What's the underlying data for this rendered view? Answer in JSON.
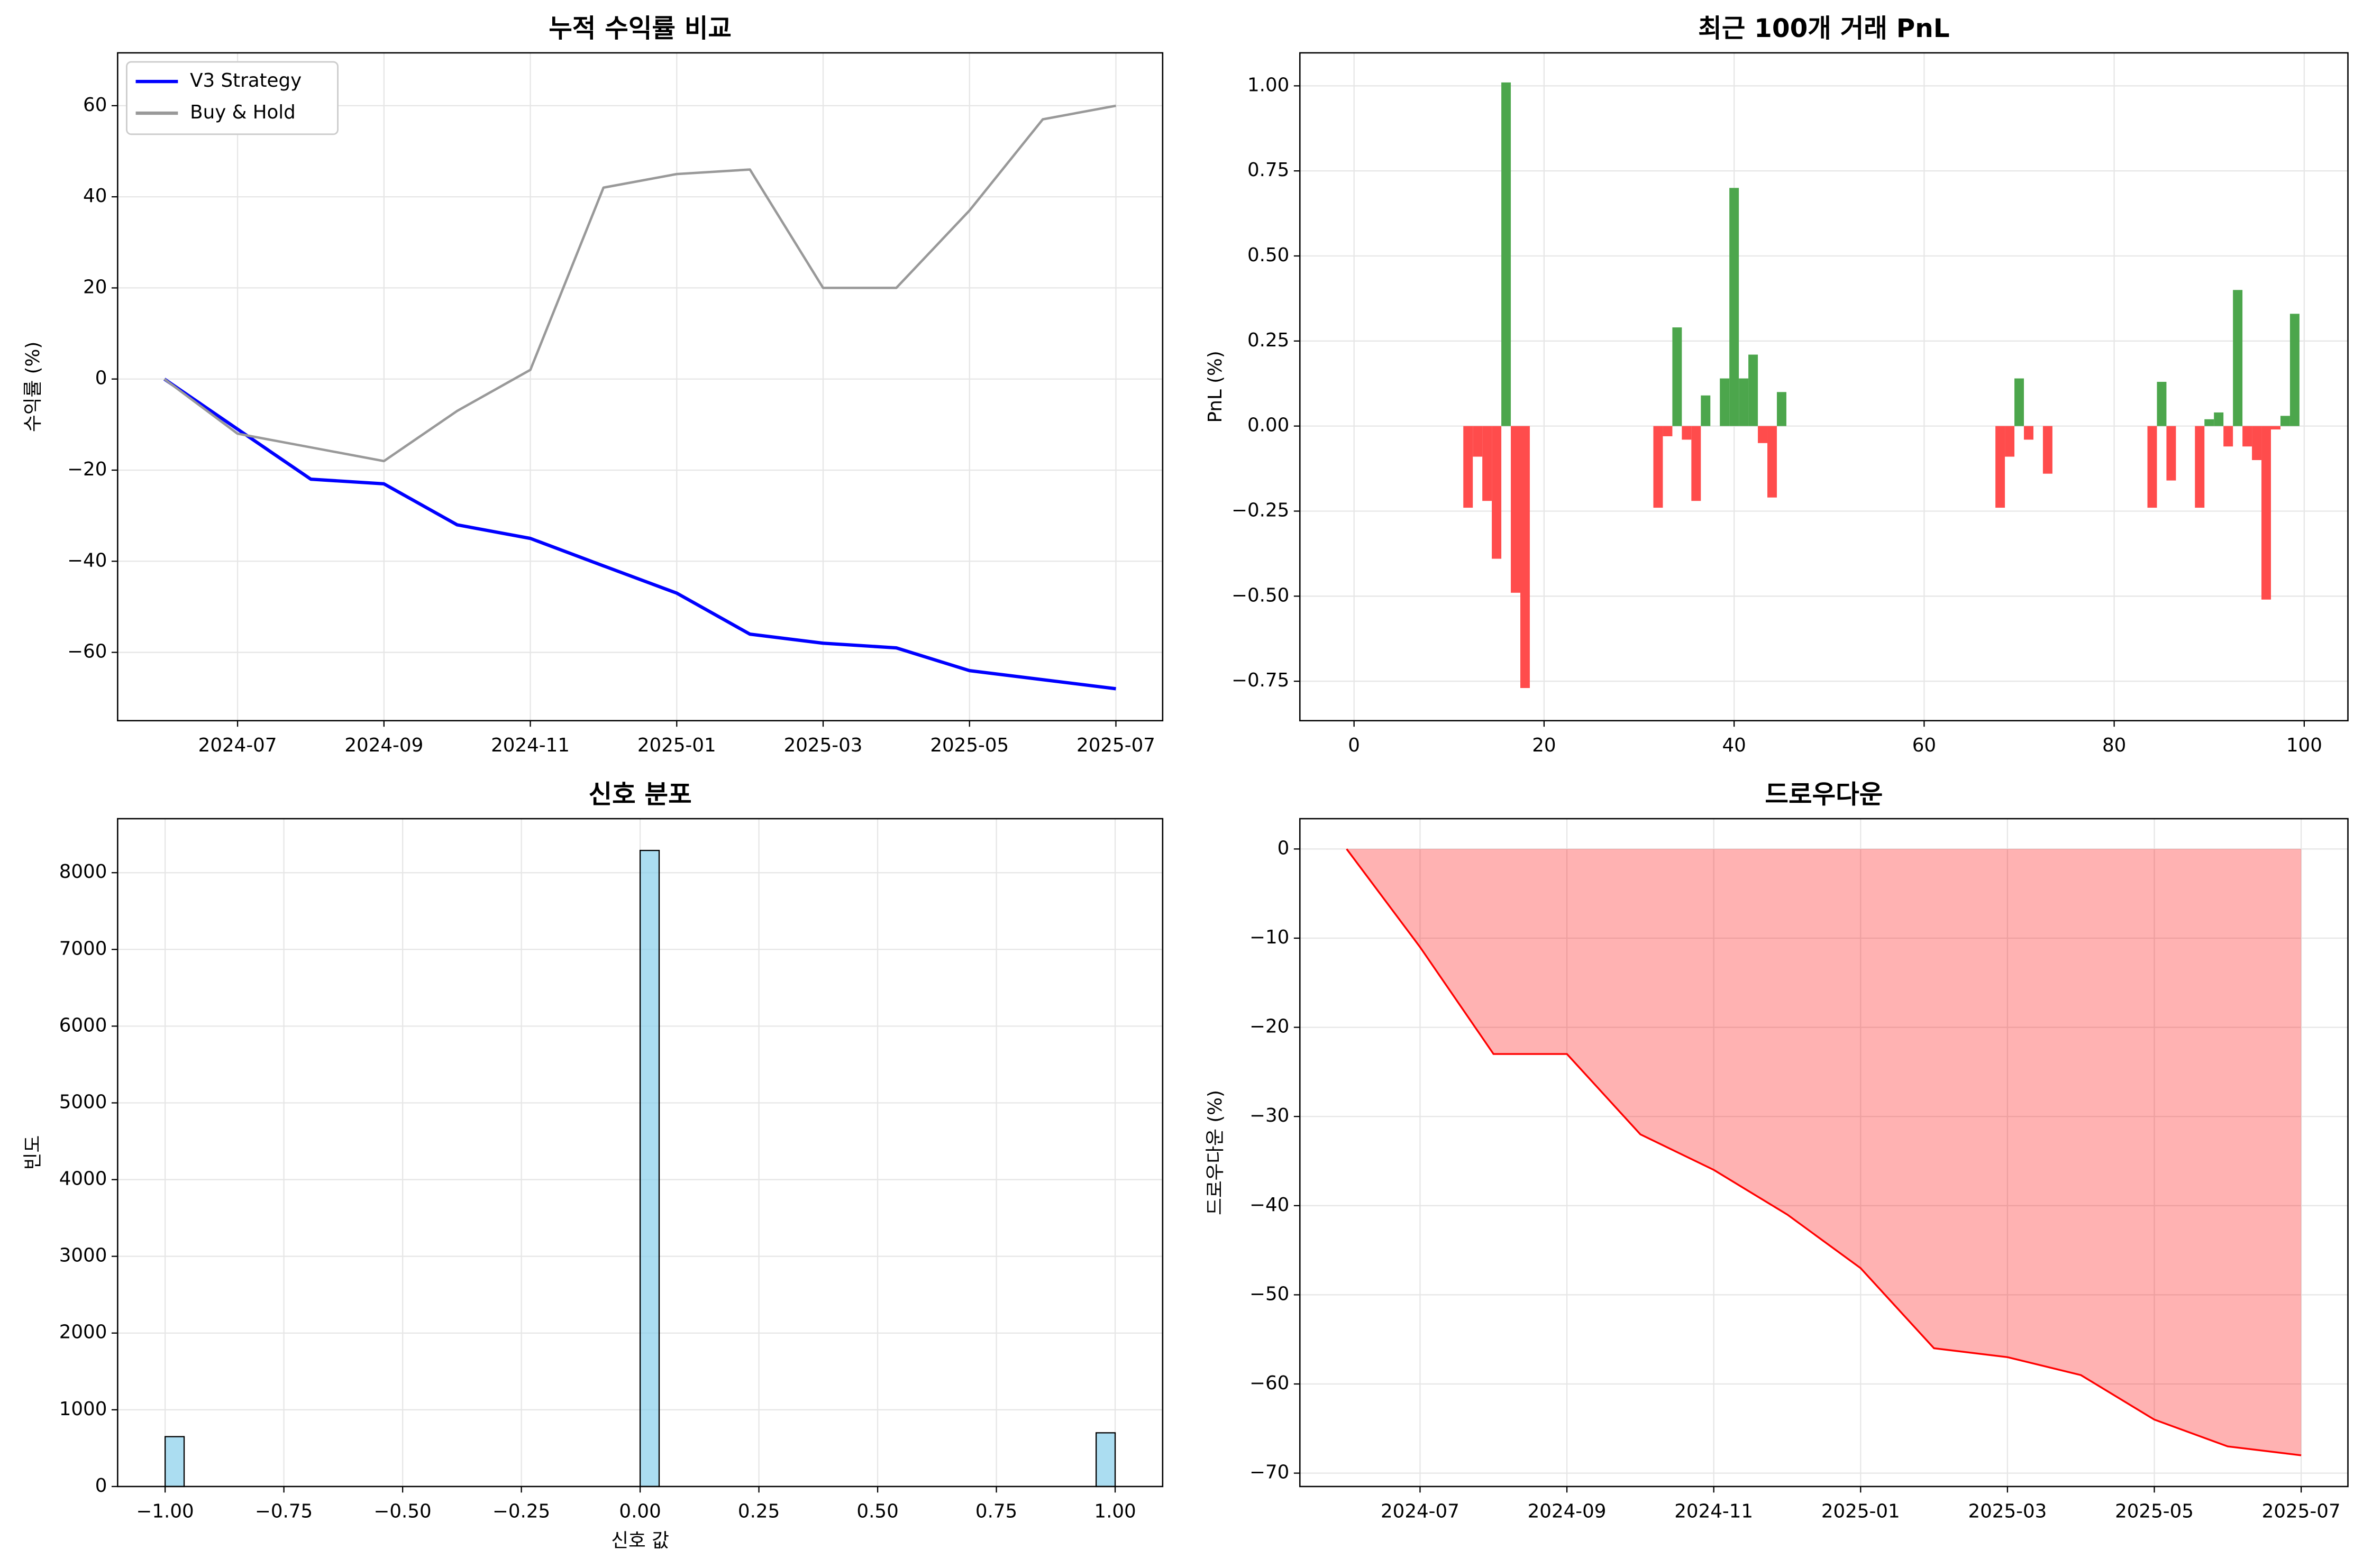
{
  "chart_data": [
    {
      "type": "line",
      "title": "누적 수익률 비교",
      "ylabel": "수익률 (%)",
      "x": [
        "2024-06",
        "2024-07",
        "2024-08",
        "2024-09",
        "2024-10",
        "2024-11",
        "2024-12",
        "2025-01",
        "2025-02",
        "2025-03",
        "2025-04",
        "2025-05",
        "2025-06",
        "2025-07"
      ],
      "xticks": [
        "2024-07",
        "2024-09",
        "2024-11",
        "2025-01",
        "2025-03",
        "2025-05",
        "2025-07"
      ],
      "series": [
        {
          "name": "V3 Strategy",
          "color": "#0000ff",
          "values": [
            0,
            -11,
            -22,
            -23,
            -32,
            -35,
            -41,
            -47,
            -56,
            -58,
            -59,
            -64,
            -66,
            -68
          ]
        },
        {
          "name": "Buy & Hold",
          "color": "#999999",
          "values": [
            0,
            -12,
            -15,
            -18,
            -7,
            2,
            42,
            45,
            46,
            20,
            20,
            37,
            57,
            60
          ]
        }
      ],
      "ylim": [
        -75,
        71.6
      ],
      "yticks": [
        {
          "value": -60,
          "label": "−60"
        },
        {
          "value": -40,
          "label": "−40"
        },
        {
          "value": -20,
          "label": "−20"
        },
        0,
        20,
        40,
        60
      ],
      "grid": true,
      "legend": "upper-left"
    },
    {
      "type": "bar",
      "title": "최근 100개 거래 PnL",
      "ylabel": "PnL (%)",
      "x": [
        0,
        1,
        2,
        3,
        4,
        5,
        6,
        7,
        8,
        9,
        10,
        11,
        12,
        13,
        14,
        15,
        16,
        17,
        18,
        19,
        20,
        21,
        22,
        23,
        24,
        25,
        26,
        27,
        28,
        29,
        30,
        31,
        32,
        33,
        34,
        35,
        36,
        37,
        38,
        39,
        40,
        41,
        42,
        43,
        44,
        45,
        46,
        47,
        48,
        49,
        50,
        51,
        52,
        53,
        54,
        55,
        56,
        57,
        58,
        59,
        60,
        61,
        62,
        63,
        64,
        65,
        66,
        67,
        68,
        69,
        70,
        71,
        72,
        73,
        74,
        75,
        76,
        77,
        78,
        79,
        80,
        81,
        82,
        83,
        84,
        85,
        86,
        87,
        88,
        89,
        90,
        91,
        92,
        93,
        94,
        95,
        96,
        97,
        98,
        99
      ],
      "values": [
        0,
        0,
        0,
        0,
        0,
        0,
        0,
        0,
        0,
        0,
        0,
        0,
        -0.24,
        -0.09,
        -0.22,
        -0.39,
        1.01,
        -0.49,
        -0.77,
        0,
        0,
        0,
        0,
        0,
        0,
        0,
        0,
        0,
        0,
        0,
        0,
        0,
        -0.24,
        -0.03,
        0.29,
        -0.04,
        -0.22,
        0.09,
        0,
        0.14,
        0.7,
        0.14,
        0.21,
        -0.05,
        -0.21,
        0.1,
        0,
        0,
        0,
        0,
        0,
        0,
        0,
        0,
        0,
        0,
        0,
        0,
        0,
        0,
        0,
        0,
        0,
        0,
        0,
        0,
        0,
        0,
        -0.24,
        -0.09,
        0.14,
        -0.04,
        0,
        -0.14,
        0,
        0,
        0,
        0,
        0,
        0,
        0,
        0,
        0,
        0,
        -0.24,
        0.13,
        -0.16,
        0,
        0,
        -0.24,
        0.02,
        0.04,
        -0.06,
        0.4,
        -0.06,
        -0.1,
        -0.51,
        -0.01,
        0.03,
        0.33
      ],
      "color_positive": "#4ca64c",
      "color_negative": "#ff4c4c",
      "xlim": [
        -5.7,
        104.6
      ],
      "xticks": [
        0,
        20,
        40,
        60,
        80,
        100
      ],
      "ylim": [
        -0.866,
        1.097
      ],
      "yticks": [
        {
          "value": -0.75,
          "label": "−0.75"
        },
        {
          "value": -0.5,
          "label": "−0.50"
        },
        {
          "value": -0.25,
          "label": "−0.25"
        },
        {
          "value": 0,
          "label": "0.00"
        },
        0.25,
        {
          "value": 0.5,
          "label": "0.50"
        },
        0.75,
        {
          "value": 1,
          "label": "1.00"
        }
      ],
      "grid": true
    },
    {
      "type": "histogram",
      "title": "신호 분포",
      "xlabel": "신호 값",
      "ylabel": "빈도",
      "bins": [
        -1,
        -0.96,
        -0.92,
        -0.88,
        -0.84,
        -0.8,
        -0.76,
        -0.72,
        -0.68,
        -0.64,
        -0.6,
        -0.56,
        -0.52,
        -0.48,
        -0.44,
        -0.4,
        -0.36,
        -0.32,
        -0.28,
        -0.24,
        -0.2,
        -0.16,
        -0.12,
        -0.08,
        -0.04,
        0,
        0.04,
        0.08,
        0.12,
        0.16,
        0.2,
        0.24,
        0.28,
        0.32,
        0.36,
        0.4,
        0.44,
        0.48,
        0.52,
        0.56,
        0.6,
        0.64,
        0.68,
        0.72,
        0.76,
        0.8,
        0.84,
        0.88,
        0.92,
        0.96,
        1
      ],
      "values": [
        650,
        0,
        0,
        0,
        0,
        0,
        0,
        0,
        0,
        0,
        0,
        0,
        0,
        0,
        0,
        0,
        0,
        0,
        0,
        0,
        0,
        0,
        0,
        0,
        0,
        8290,
        0,
        0,
        0,
        0,
        0,
        0,
        0,
        0,
        0,
        0,
        0,
        0,
        0,
        0,
        0,
        0,
        0,
        0,
        0,
        0,
        0,
        0,
        0,
        700
      ],
      "color": "#87ceeb",
      "edgecolor": "#000000",
      "xlim": [
        -1.1,
        1.1
      ],
      "xticks": [
        {
          "value": -1,
          "label": "−1.00"
        },
        {
          "value": -0.75,
          "label": "−0.75"
        },
        {
          "value": -0.5,
          "label": "−0.50"
        },
        {
          "value": -0.25,
          "label": "−0.25"
        },
        {
          "value": 0,
          "label": "0.00"
        },
        0.25,
        {
          "value": 0.5,
          "label": "0.50"
        },
        0.75,
        {
          "value": 1,
          "label": "1.00"
        }
      ],
      "ylim": [
        0,
        8704
      ],
      "yticks": [
        0,
        1000,
        2000,
        3000,
        4000,
        5000,
        6000,
        7000,
        8000
      ],
      "grid": true
    },
    {
      "type": "area",
      "title": "드로우다운",
      "ylabel": "드로우다운 (%)",
      "x": [
        "2024-06",
        "2024-07",
        "2024-08",
        "2024-09",
        "2024-10",
        "2024-11",
        "2024-12",
        "2025-01",
        "2025-02",
        "2025-03",
        "2025-04",
        "2025-05",
        "2025-06",
        "2025-07"
      ],
      "xticks": [
        "2024-07",
        "2024-09",
        "2024-11",
        "2025-01",
        "2025-03",
        "2025-05",
        "2025-07"
      ],
      "values": [
        0,
        -11,
        -23,
        -23,
        -32,
        -36,
        -41,
        -47,
        -56,
        -57,
        -59,
        -64,
        -67,
        -68
      ],
      "color": "#ff0000",
      "ylim": [
        -71.5,
        3.4
      ],
      "yticks": [
        {
          "value": -70,
          "label": "−70"
        },
        {
          "value": -60,
          "label": "−60"
        },
        {
          "value": -50,
          "label": "−50"
        },
        {
          "value": -40,
          "label": "−40"
        },
        {
          "value": -30,
          "label": "−30"
        },
        {
          "value": -20,
          "label": "−20"
        },
        {
          "value": -10,
          "label": "−10"
        },
        0
      ],
      "grid": true
    }
  ]
}
